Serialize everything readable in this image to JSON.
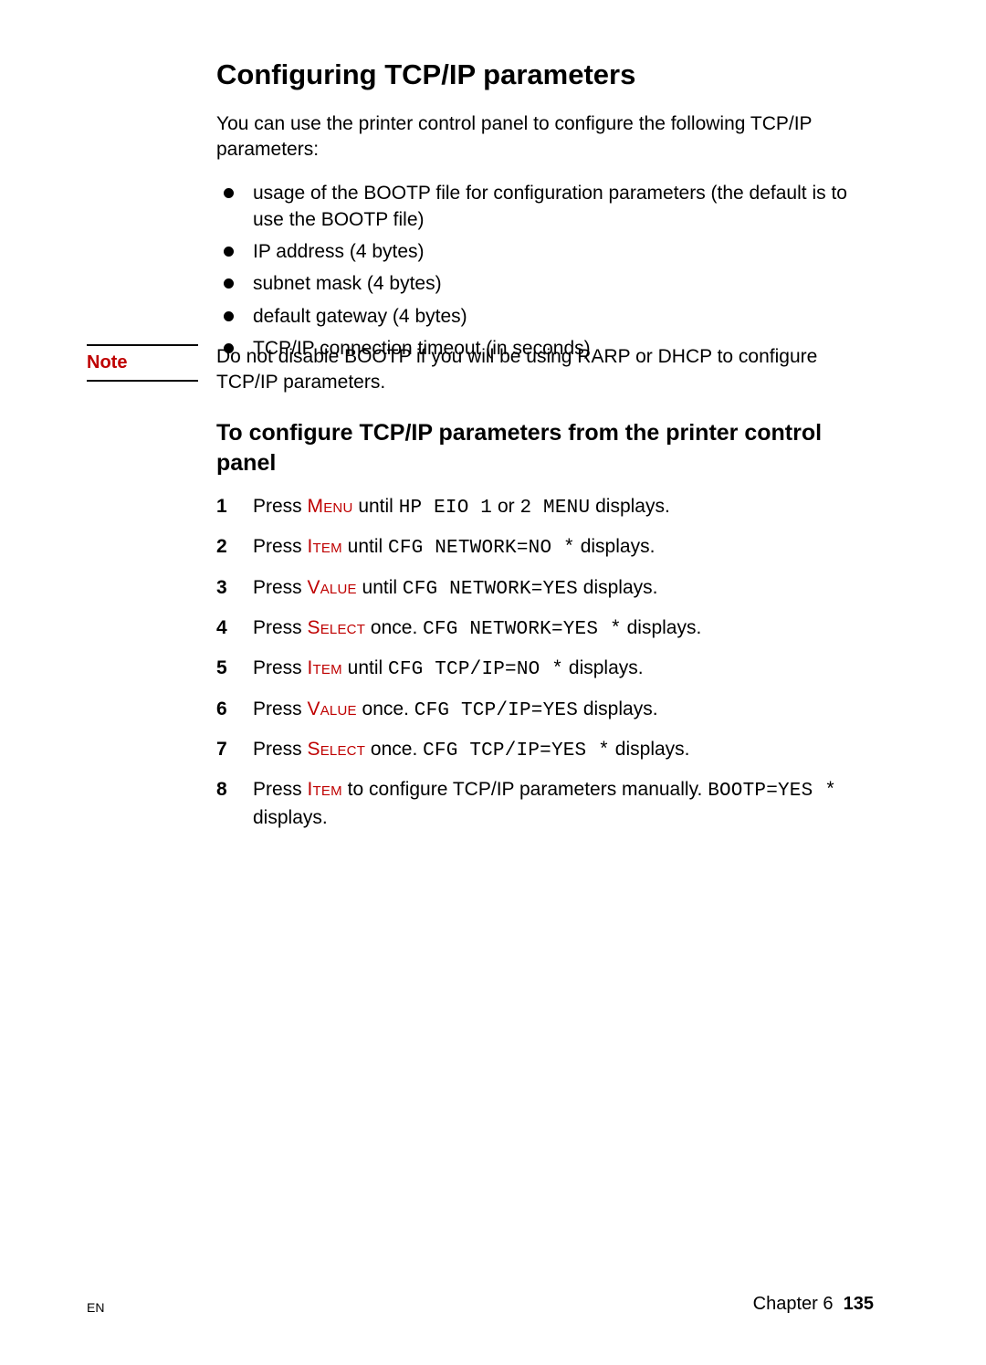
{
  "title": "Configuring TCP/IP parameters",
  "intro": "You can use the printer control panel to configure the following TCP/IP parameters:",
  "bullets": [
    "usage of the BOOTP file for configuration parameters (the default is to use the BOOTP file)",
    "IP address (4 bytes)",
    "subnet mask (4 bytes)",
    "default gateway (4 bytes)",
    "TCP/IP connection timeout (in seconds)"
  ],
  "note": {
    "label": "Note",
    "text": "Do not disable BOOTP if you will be using RARP or DHCP to configure TCP/IP parameters."
  },
  "subhead": "To configure TCP/IP parameters from the printer control panel",
  "steps": {
    "s1": {
      "press": "Press ",
      "key": "Menu",
      "mid": " until ",
      "mono1": "HP EIO 1",
      "or": " or ",
      "mono2": "2 MENU",
      "tail": " displays."
    },
    "s2": {
      "press": "Press ",
      "key": "Item",
      "mid": " until ",
      "mono": "CFG NETWORK=NO *",
      "tail": " displays."
    },
    "s3": {
      "press": "Press ",
      "key": "Value",
      "mid": " until ",
      "mono": "CFG NETWORK=YES",
      "tail": " displays."
    },
    "s4": {
      "press": "Press ",
      "key": "Select",
      "mid": " once. ",
      "mono": "CFG NETWORK=YES *",
      "tail": " displays."
    },
    "s5": {
      "press": "Press ",
      "key": "Item",
      "mid": " until ",
      "mono": "CFG TCP/IP=NO *",
      "tail": " displays."
    },
    "s6": {
      "press": "Press ",
      "key": "Value",
      "mid": " once. ",
      "mono": "CFG TCP/IP=YES",
      "tail": " displays."
    },
    "s7": {
      "press": "Press ",
      "key": "Select",
      "mid": " once. ",
      "mono": "CFG TCP/IP=YES *",
      "tail": " displays."
    },
    "s8": {
      "press": "Press ",
      "key": "Item",
      "mid": " to configure TCP/IP parameters manually. ",
      "mono": "BOOTP=YES *",
      "tail": " displays."
    }
  },
  "footer": {
    "left": "EN",
    "chapter": "Chapter 6",
    "page": "135"
  },
  "colors": {
    "accent": "#bf0000",
    "text": "#000000",
    "background": "#ffffff"
  }
}
